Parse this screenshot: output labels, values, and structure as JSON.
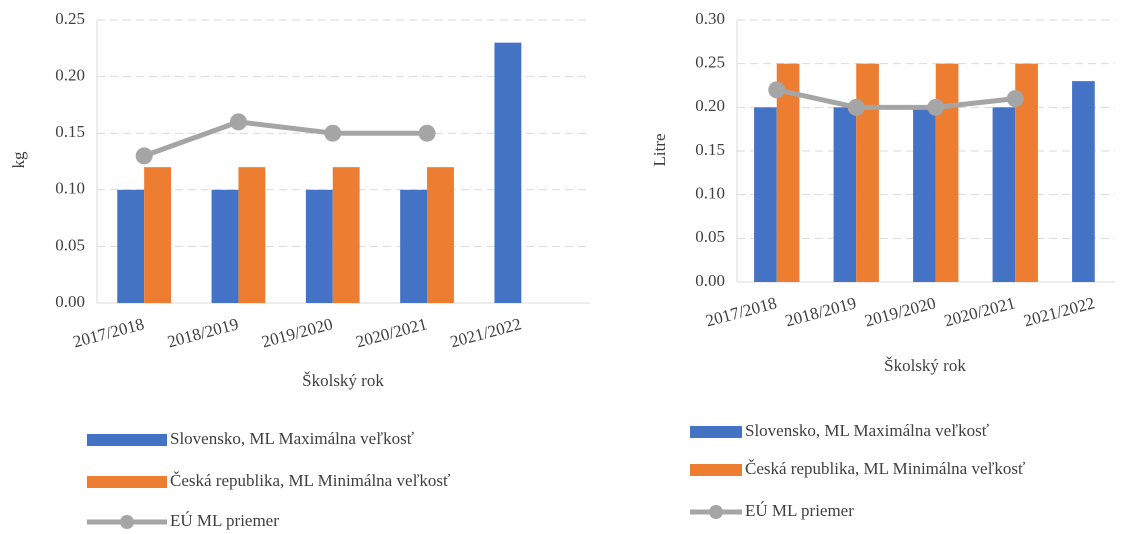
{
  "chart_data": [
    {
      "type": "bar",
      "ylabel": "kg",
      "xlabel": "Školský rok",
      "categories": [
        "2017/2018",
        "2018/2019",
        "2019/2020",
        "2020/2021",
        "2021/2022"
      ],
      "series": [
        {
          "name": "Slovensko, ML Maximálna veľkosť",
          "color": "#4472c4",
          "type": "bar",
          "values": [
            0.1,
            0.1,
            0.1,
            0.1,
            0.23
          ]
        },
        {
          "name": "Česká republika, ML Minimálna veľkosť",
          "color": "#ed7d31",
          "type": "bar",
          "values": [
            0.12,
            0.12,
            0.12,
            0.12,
            null
          ]
        },
        {
          "name": "EÚ ML priemer",
          "color": "#a5a5a5",
          "type": "line",
          "values": [
            0.13,
            0.16,
            0.15,
            0.15,
            null
          ]
        }
      ],
      "ylim": [
        0,
        0.25
      ],
      "yticks": [
        {
          "value": 0,
          "label": "0.00"
        },
        0.05,
        {
          "value": 0.1,
          "label": "0.10"
        },
        0.15,
        {
          "value": 0.2,
          "label": "0.20"
        },
        0.25
      ],
      "grid": true
    },
    {
      "type": "bar",
      "ylabel": "Litre",
      "xlabel": "Školský rok",
      "categories": [
        "2017/2018",
        "2018/2019",
        "2019/2020",
        "2020/2021",
        "2021/2022"
      ],
      "series": [
        {
          "name": "Slovensko, ML Maximálna veľkosť",
          "color": "#4472c4",
          "type": "bar",
          "values": [
            0.2,
            0.2,
            0.2,
            0.2,
            0.23
          ]
        },
        {
          "name": "Česká republika, ML Minimálna veľkosť",
          "color": "#ed7d31",
          "type": "bar",
          "values": [
            0.25,
            0.25,
            0.25,
            0.25,
            null
          ]
        },
        {
          "name": "EÚ ML priemer",
          "color": "#a5a5a5",
          "type": "line",
          "values": [
            0.22,
            0.2,
            0.2,
            0.21,
            null
          ]
        }
      ],
      "ylim": [
        0,
        0.3
      ],
      "yticks": [
        {
          "value": 0,
          "label": "0.00"
        },
        0.05,
        {
          "value": 0.1,
          "label": "0.10"
        },
        0.15,
        {
          "value": 0.2,
          "label": "0.20"
        },
        0.25,
        {
          "value": 0.3,
          "label": "0.30"
        }
      ],
      "grid": true
    }
  ]
}
